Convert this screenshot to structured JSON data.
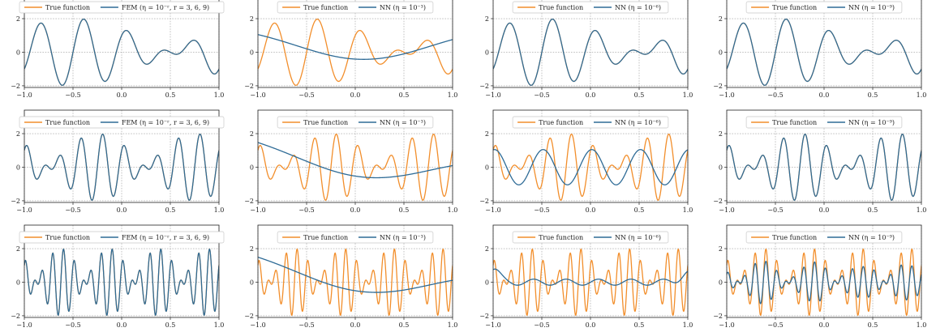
{
  "colors": {
    "true": "#f28e2b",
    "approx": "#2e6b96"
  },
  "chart_data": {
    "type": "line",
    "layout": "3x4 grid of subplots",
    "xlim": [
      -1.0,
      1.0
    ],
    "ylim": [
      -2.1,
      3.4
    ],
    "xticks": [
      -1.0,
      -0.5,
      0.0,
      0.5,
      1.0
    ],
    "xtick_labels": [
      "−1.0",
      "−0.5",
      "0.0",
      "0.5",
      "1.0"
    ],
    "yticks": [
      -2,
      0,
      2
    ],
    "ytick_labels": [
      "−2",
      "0",
      "2"
    ],
    "grid": true,
    "legend_placement": "top",
    "true_function": "sin(a·πx) + cos(b·πx)",
    "rows": [
      {
        "frequencies": {
          "a": 4,
          "b": 5
        },
        "panels": [
          {
            "column": 1,
            "legend": [
              "True function",
              "FEM (η = 10⁻ʳ, r = 3, 6, 9)"
            ],
            "approx": "exact"
          },
          {
            "column": 2,
            "legend": [
              "True function",
              "NN (η = 10⁻³)"
            ],
            "approx": "smooth",
            "smooth": {
              "c0": 0.32,
              "c1": 0.0,
              "c2": 0.45,
              "c3": 0.2
            }
          },
          {
            "column": 3,
            "legend": [
              "True function",
              "NN (η = 10⁻⁶)"
            ],
            "approx": "exact"
          },
          {
            "column": 4,
            "legend": [
              "True function",
              "NN (η = 10⁻⁹)"
            ],
            "approx": "exact"
          }
        ]
      },
      {
        "frequencies": {
          "a": 8,
          "b": 10
        },
        "panels": [
          {
            "column": 1,
            "legend": [
              "True function",
              "FEM (η = 10⁻ʳ, r = 3, 6, 9)"
            ],
            "approx": "exact"
          },
          {
            "column": 2,
            "legend": [
              "True function",
              "NN (η = 10⁻³)"
            ],
            "approx": "smooth",
            "smooth": {
              "c0": 0.2,
              "c1": -0.5,
              "c2": 0.62,
              "c3": 0.25
            }
          },
          {
            "column": 3,
            "legend": [
              "True function",
              "NN (η = 10⁻⁶)"
            ],
            "approx": "single",
            "single": {
              "amp": 1.05,
              "freq": 4,
              "phase": 1.4
            }
          },
          {
            "column": 4,
            "legend": [
              "True function",
              "NN (η = 10⁻⁹)"
            ],
            "approx": "exact"
          }
        ]
      },
      {
        "frequencies": {
          "a": 16,
          "b": 20
        },
        "panels": [
          {
            "column": 1,
            "legend": [
              "True function",
              "FEM (η = 10⁻ʳ, r = 3, 6, 9)"
            ],
            "approx": "exact"
          },
          {
            "column": 2,
            "legend": [
              "True function",
              "NN (η = 10⁻³)"
            ],
            "approx": "smooth",
            "smooth": {
              "c0": 0.22,
              "c1": -0.5,
              "c2": 0.62,
              "c3": 0.25
            }
          },
          {
            "column": 3,
            "legend": [
              "True function",
              "NN (η = 10⁻⁶)"
            ],
            "approx": "wavy",
            "wavy": {
              "base": 0.0,
              "amp": 0.18,
              "freq": 6
            }
          },
          {
            "column": 4,
            "legend": [
              "True function",
              "NN (η = 10⁻⁹)"
            ],
            "approx": "partial",
            "partial": {
              "scale": 0.65
            }
          }
        ]
      }
    ]
  }
}
